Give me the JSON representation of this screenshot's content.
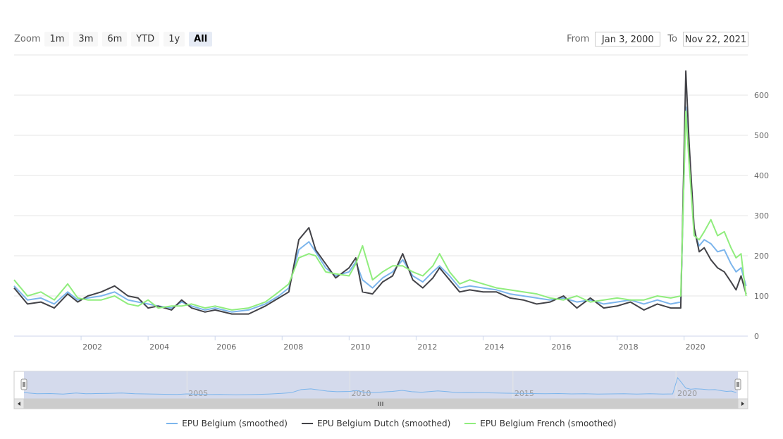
{
  "zoom": {
    "label": "Zoom",
    "buttons": [
      {
        "label": "1m"
      },
      {
        "label": "3m"
      },
      {
        "label": "6m"
      },
      {
        "label": "YTD"
      },
      {
        "label": "1y"
      },
      {
        "label": "All",
        "active": true
      }
    ]
  },
  "range": {
    "from_label": "From",
    "from_value": "Jan 3, 2000",
    "to_label": "To",
    "to_value": "Nov 22, 2021"
  },
  "colors": {
    "belgium": "#7cb5ec",
    "dutch": "#434348",
    "french": "#90ed7d",
    "navigator_fill": "#cfd6ea",
    "scrollbar": "#cccccc"
  },
  "chart_data": {
    "type": "line",
    "title": "",
    "xlabel": "",
    "ylabel": "",
    "xlim": [
      2000.0,
      2021.9
    ],
    "ylim": [
      0,
      700
    ],
    "yticks": [
      0,
      100,
      200,
      300,
      400,
      500,
      600
    ],
    "xticks": [
      2002,
      2004,
      2006,
      2008,
      2010,
      2012,
      2014,
      2016,
      2018,
      2020
    ],
    "navigator_ticks": [
      2005,
      2010,
      2015,
      2020
    ],
    "grid": true,
    "legend_position": "bottom",
    "series": [
      {
        "name": "EPU Belgium (smoothed)",
        "color": "#7cb5ec",
        "x": [
          2000.0,
          2000.4,
          2000.8,
          2001.2,
          2001.6,
          2001.9,
          2002.2,
          2002.6,
          2003.0,
          2003.4,
          2003.7,
          2004.0,
          2004.3,
          2004.7,
          2005.0,
          2005.3,
          2005.7,
          2006.0,
          2006.5,
          2007.0,
          2007.5,
          2007.9,
          2008.2,
          2008.5,
          2008.8,
          2009.0,
          2009.3,
          2009.6,
          2010.0,
          2010.2,
          2010.4,
          2010.7,
          2011.0,
          2011.3,
          2011.6,
          2011.9,
          2012.2,
          2012.5,
          2012.7,
          2013.0,
          2013.3,
          2013.6,
          2014.0,
          2014.4,
          2014.8,
          2015.2,
          2015.6,
          2016.0,
          2016.4,
          2016.8,
          2017.2,
          2017.6,
          2018.0,
          2018.4,
          2018.8,
          2019.2,
          2019.6,
          2019.9,
          2020.05,
          2020.15,
          2020.3,
          2020.45,
          2020.6,
          2020.8,
          2021.0,
          2021.2,
          2021.4,
          2021.55,
          2021.7,
          2021.85
        ],
        "y": [
          125,
          90,
          95,
          80,
          110,
          90,
          95,
          100,
          110,
          90,
          85,
          80,
          75,
          70,
          85,
          75,
          65,
          70,
          60,
          65,
          80,
          100,
          120,
          215,
          235,
          210,
          170,
          150,
          160,
          185,
          140,
          120,
          145,
          160,
          190,
          150,
          135,
          160,
          175,
          150,
          120,
          125,
          120,
          115,
          105,
          100,
          95,
          90,
          95,
          85,
          90,
          80,
          85,
          90,
          80,
          90,
          80,
          85,
          570,
          450,
          260,
          225,
          240,
          230,
          210,
          215,
          180,
          160,
          170,
          125
        ]
      },
      {
        "name": "EPU Belgium Dutch (smoothed)",
        "color": "#434348",
        "x": [
          2000.0,
          2000.4,
          2000.8,
          2001.2,
          2001.6,
          2001.9,
          2002.2,
          2002.6,
          2003.0,
          2003.4,
          2003.7,
          2004.0,
          2004.3,
          2004.7,
          2005.0,
          2005.3,
          2005.7,
          2006.0,
          2006.5,
          2007.0,
          2007.5,
          2007.9,
          2008.2,
          2008.5,
          2008.8,
          2009.0,
          2009.3,
          2009.6,
          2010.0,
          2010.2,
          2010.4,
          2010.7,
          2011.0,
          2011.3,
          2011.6,
          2011.9,
          2012.2,
          2012.5,
          2012.7,
          2013.0,
          2013.3,
          2013.6,
          2014.0,
          2014.4,
          2014.8,
          2015.2,
          2015.6,
          2016.0,
          2016.4,
          2016.8,
          2017.2,
          2017.6,
          2018.0,
          2018.4,
          2018.8,
          2019.2,
          2019.6,
          2019.9,
          2020.05,
          2020.15,
          2020.3,
          2020.45,
          2020.6,
          2020.8,
          2021.0,
          2021.2,
          2021.4,
          2021.55,
          2021.7,
          2021.85
        ],
        "y": [
          120,
          80,
          85,
          70,
          105,
          85,
          100,
          110,
          125,
          100,
          95,
          70,
          75,
          65,
          90,
          70,
          60,
          65,
          55,
          55,
          75,
          95,
          110,
          240,
          270,
          215,
          180,
          145,
          170,
          195,
          110,
          105,
          135,
          150,
          205,
          140,
          120,
          145,
          170,
          140,
          110,
          115,
          110,
          110,
          95,
          90,
          80,
          85,
          100,
          70,
          95,
          70,
          75,
          85,
          65,
          80,
          70,
          70,
          660,
          480,
          270,
          210,
          220,
          190,
          170,
          160,
          135,
          115,
          150,
          105
        ]
      },
      {
        "name": "EPU Belgium French (smoothed)",
        "color": "#90ed7d",
        "x": [
          2000.0,
          2000.4,
          2000.8,
          2001.2,
          2001.6,
          2001.9,
          2002.2,
          2002.6,
          2003.0,
          2003.4,
          2003.7,
          2004.0,
          2004.3,
          2004.7,
          2005.0,
          2005.3,
          2005.7,
          2006.0,
          2006.5,
          2007.0,
          2007.5,
          2007.9,
          2008.2,
          2008.5,
          2008.8,
          2009.0,
          2009.3,
          2009.6,
          2010.0,
          2010.2,
          2010.4,
          2010.7,
          2011.0,
          2011.3,
          2011.6,
          2011.9,
          2012.2,
          2012.5,
          2012.7,
          2013.0,
          2013.3,
          2013.6,
          2014.0,
          2014.4,
          2014.8,
          2015.2,
          2015.6,
          2016.0,
          2016.4,
          2016.8,
          2017.2,
          2017.6,
          2018.0,
          2018.4,
          2018.8,
          2019.2,
          2019.6,
          2019.9,
          2020.05,
          2020.15,
          2020.3,
          2020.45,
          2020.6,
          2020.8,
          2021.0,
          2021.2,
          2021.4,
          2021.55,
          2021.7,
          2021.85
        ],
        "y": [
          140,
          100,
          110,
          90,
          130,
          95,
          90,
          90,
          100,
          80,
          75,
          90,
          70,
          75,
          75,
          80,
          70,
          75,
          65,
          70,
          85,
          110,
          130,
          195,
          205,
          200,
          160,
          155,
          150,
          180,
          225,
          140,
          160,
          175,
          175,
          160,
          150,
          175,
          205,
          160,
          130,
          140,
          130,
          120,
          115,
          110,
          105,
          95,
          90,
          100,
          85,
          90,
          95,
          90,
          90,
          100,
          95,
          100,
          560,
          430,
          250,
          240,
          260,
          290,
          250,
          260,
          220,
          195,
          205,
          100
        ]
      }
    ]
  }
}
